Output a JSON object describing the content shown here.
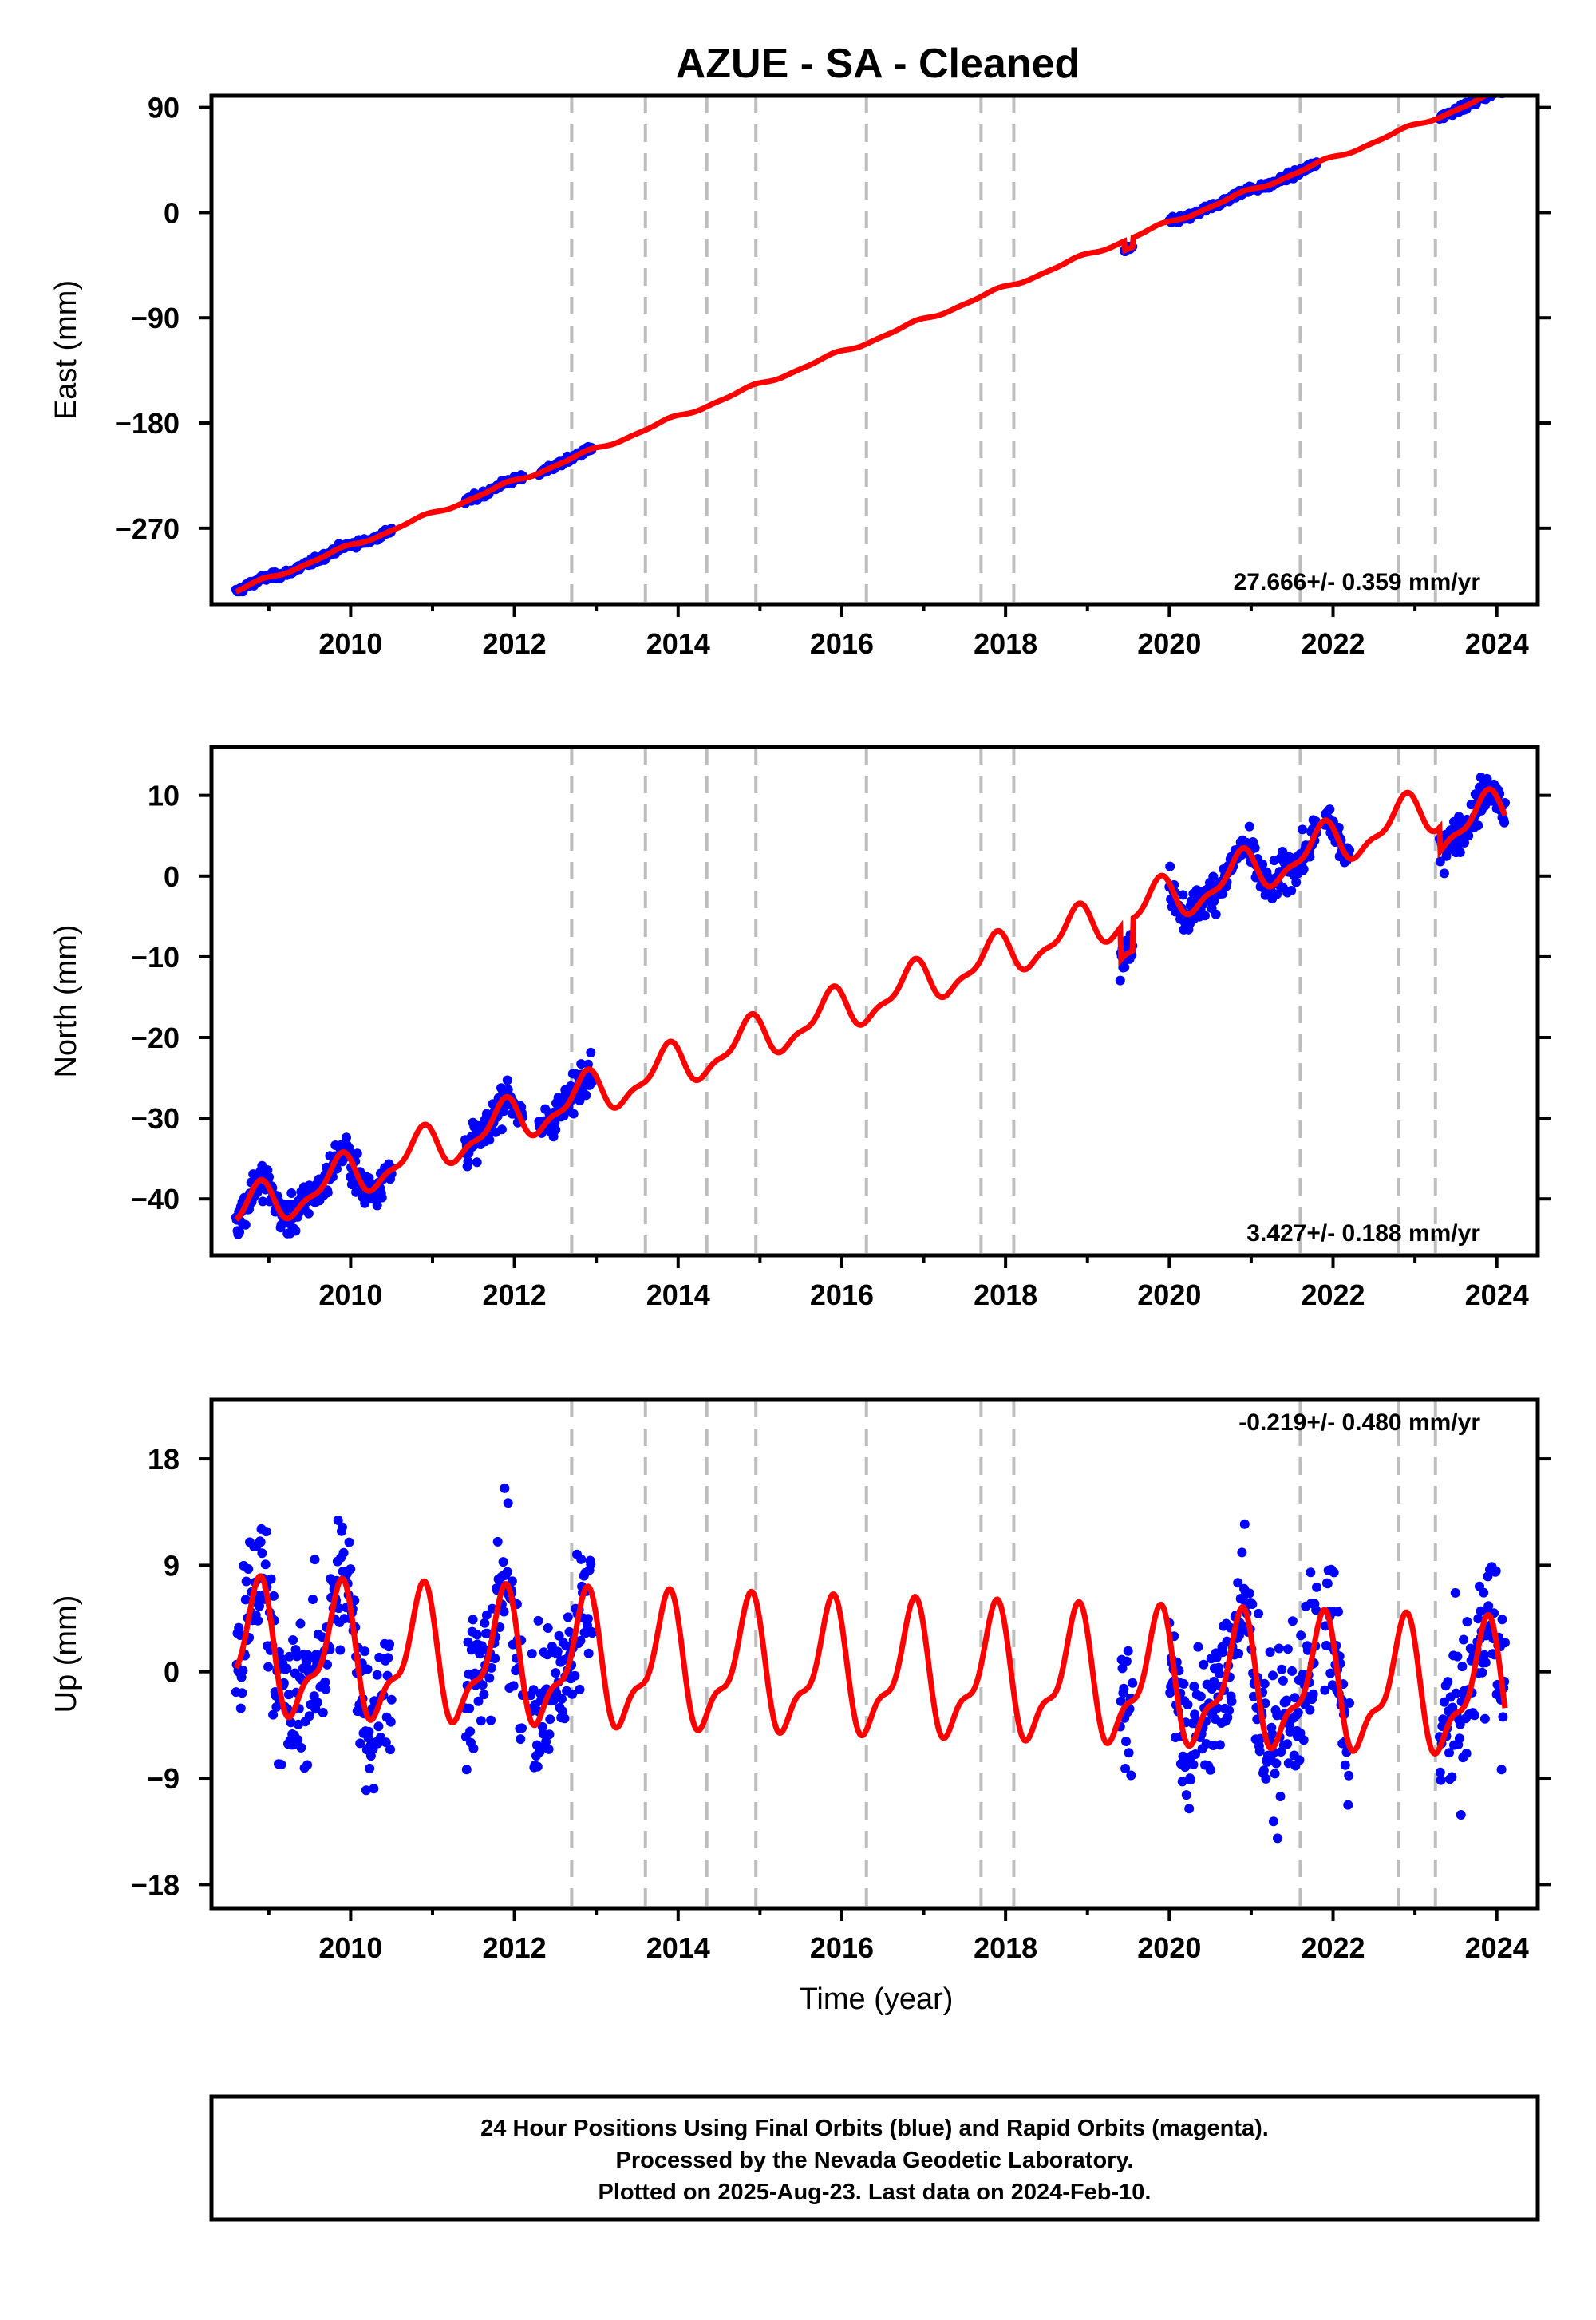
{
  "title": "AZUE  - SA - Cleaned",
  "colors": {
    "final_orbits": "#0000ff",
    "model": "#ff0000",
    "event_lines": "#bdbdbd"
  },
  "footer": {
    "line1": "24 Hour Positions Using Final Orbits (blue) and Rapid Orbits (magenta).",
    "line2": "Processed by the Nevada Geodetic Laboratory.",
    "line3": "Plotted on 2025-Aug-23. Last data on 2024-Feb-10."
  },
  "chart_data": [
    {
      "type": "scatter",
      "component": "east",
      "ylabel": "East (mm)",
      "xlabel": "",
      "xlim": [
        2008.3,
        2024.5
      ],
      "ylim": [
        -335,
        100
      ],
      "x_ticks": [
        "2010",
        "2012",
        "2014",
        "2016",
        "2018",
        "2020",
        "2022",
        "2024"
      ],
      "y_ticks": [
        "90",
        "0",
        "−90",
        "−180",
        "−270"
      ],
      "y_tick_values": [
        90,
        0,
        -90,
        -180,
        -270
      ],
      "rate": "27.666+/- 0.359 mm/yr",
      "trend": {
        "ref_year": 2008.6,
        "ref_value": -324,
        "slope": 27.666,
        "seasonal_amplitude": 1.5,
        "noise": 2.0
      },
      "event_lines": [
        2012.7,
        2013.6,
        2014.35,
        2014.95,
        2016.3,
        2017.7,
        2018.1,
        2021.6,
        2022.8,
        2023.25
      ],
      "data_segments": [
        [
          2008.6,
          2010.5
        ],
        [
          2011.4,
          2012.1
        ],
        [
          2012.3,
          2012.95
        ],
        [
          2019.45,
          2019.55
        ],
        [
          2020.0,
          2021.8
        ],
        [
          2023.3,
          2024.1
        ]
      ],
      "offsets": [
        {
          "from": 2019.45,
          "to": 2019.55,
          "delta": -8
        }
      ]
    },
    {
      "type": "scatter",
      "component": "north",
      "ylabel": "North (mm)",
      "xlabel": "",
      "xlim": [
        2008.3,
        2024.5
      ],
      "ylim": [
        -47,
        16
      ],
      "x_ticks": [
        "2010",
        "2012",
        "2014",
        "2016",
        "2018",
        "2020",
        "2022",
        "2024"
      ],
      "y_ticks": [
        "10",
        "0",
        "−10",
        "−20",
        "−30",
        "−40"
      ],
      "y_tick_values": [
        10,
        0,
        -10,
        -20,
        -30,
        -40
      ],
      "rate": "3.427+/- 0.188 mm/yr",
      "trend": {
        "ref_year": 2008.6,
        "ref_value": -42,
        "slope": 3.427,
        "seasonal_amplitude": 2.5,
        "noise": 1.6
      },
      "event_lines": [
        2012.7,
        2013.6,
        2014.35,
        2014.95,
        2016.3,
        2017.7,
        2018.1,
        2021.6,
        2022.8,
        2023.25
      ],
      "data_segments": [
        [
          2008.6,
          2010.5
        ],
        [
          2011.4,
          2012.1
        ],
        [
          2012.3,
          2012.95
        ],
        [
          2019.4,
          2019.55
        ],
        [
          2020.0,
          2021.8
        ],
        [
          2021.9,
          2022.2
        ],
        [
          2023.3,
          2024.1
        ]
      ],
      "offsets": [
        {
          "from": 2019.4,
          "to": 2019.55,
          "delta": -4
        },
        {
          "from": 2023.3,
          "to": 2024.1,
          "delta": -3
        }
      ]
    },
    {
      "type": "scatter",
      "component": "up",
      "ylabel": "Up (mm)",
      "xlabel": "Time (year)",
      "xlim": [
        2008.3,
        2024.5
      ],
      "ylim": [
        -20,
        23
      ],
      "x_ticks": [
        "2010",
        "2012",
        "2014",
        "2016",
        "2018",
        "2020",
        "2022",
        "2024"
      ],
      "y_ticks": [
        "18",
        "9",
        "0",
        "−9",
        "−18"
      ],
      "y_tick_values": [
        18,
        9,
        0,
        -9,
        -18
      ],
      "rate": "-0.219+/- 0.480 mm/yr",
      "trend": {
        "ref_year": 2008.6,
        "ref_value": 1.5,
        "slope": -0.219,
        "seasonal_amplitude": 5.0,
        "noise": 4.5
      },
      "event_lines": [
        2012.7,
        2013.6,
        2014.35,
        2014.95,
        2016.3,
        2017.7,
        2018.1,
        2021.6,
        2022.8,
        2023.25
      ],
      "data_segments": [
        [
          2008.6,
          2010.5
        ],
        [
          2011.4,
          2012.1
        ],
        [
          2012.2,
          2012.95
        ],
        [
          2019.4,
          2019.55
        ],
        [
          2020.0,
          2021.8
        ],
        [
          2021.9,
          2022.2
        ],
        [
          2023.3,
          2024.1
        ]
      ],
      "offsets": []
    }
  ]
}
